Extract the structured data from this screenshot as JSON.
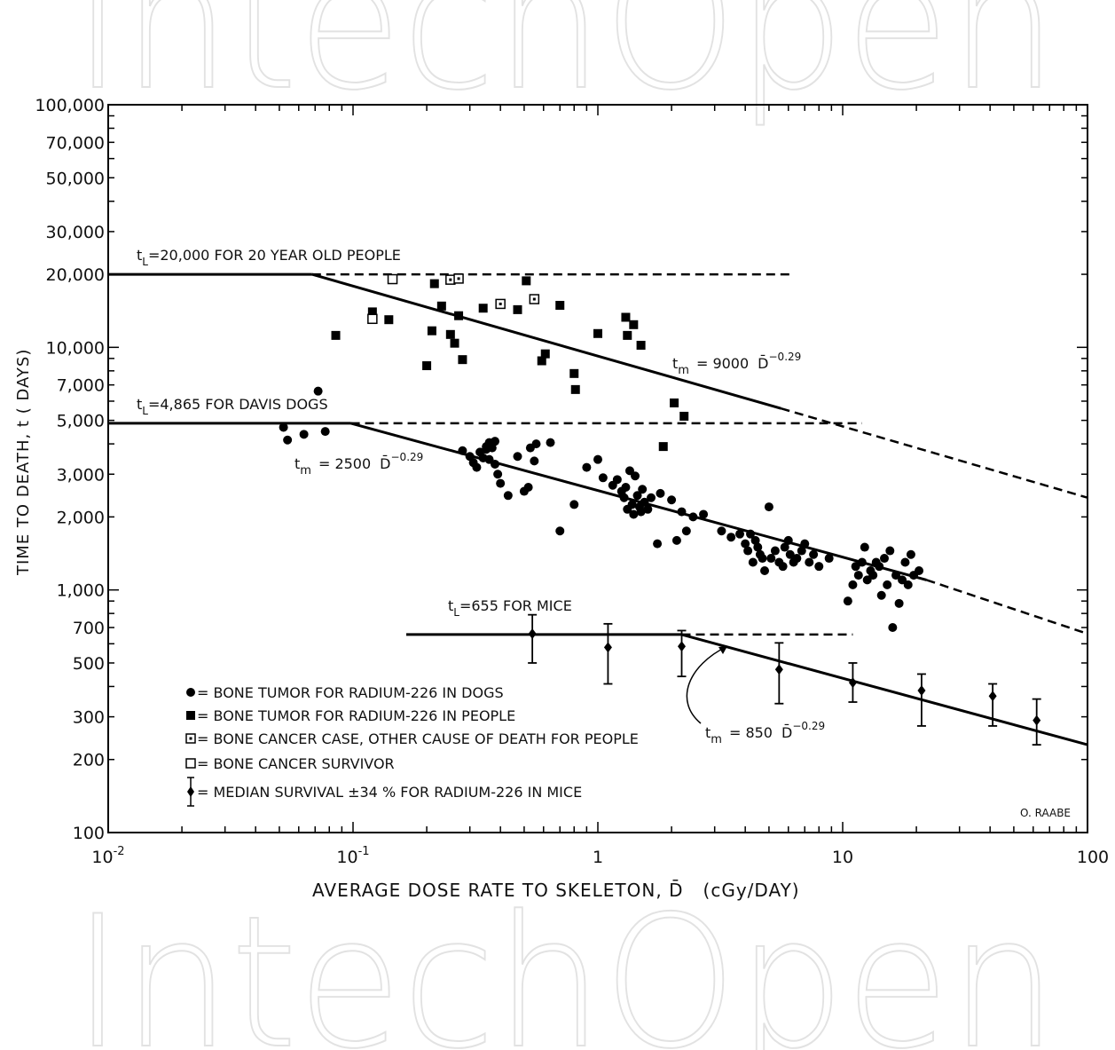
{
  "watermark": "IntechOpen",
  "chart_data": {
    "type": "scatter",
    "x_scale": "log",
    "y_scale": "log",
    "xlim": [
      0.01,
      100
    ],
    "ylim": [
      100,
      100000
    ],
    "xlabel": "AVERAGE DOSE RATE TO SKELETON, D̄   (cGy/DAY)",
    "ylabel": "TIME TO DEATH, t ( DAYS)",
    "x_ticks": [
      {
        "v": 0.01,
        "base": "10",
        "exp": "-2"
      },
      {
        "v": 0.1,
        "base": "10",
        "exp": "-1"
      },
      {
        "v": 1,
        "base": "1",
        "exp": ""
      },
      {
        "v": 10,
        "base": "10",
        "exp": ""
      },
      {
        "v": 100,
        "base": "100",
        "exp": ""
      }
    ],
    "y_ticks": [
      {
        "v": 100,
        "label": "100"
      },
      {
        "v": 200,
        "label": "200"
      },
      {
        "v": 300,
        "label": "300"
      },
      {
        "v": 500,
        "label": "500"
      },
      {
        "v": 700,
        "label": "700"
      },
      {
        "v": 1000,
        "label": "1,000"
      },
      {
        "v": 2000,
        "label": "2,000"
      },
      {
        "v": 3000,
        "label": "3,000"
      },
      {
        "v": 5000,
        "label": "5,000"
      },
      {
        "v": 7000,
        "label": "7,000"
      },
      {
        "v": 10000,
        "label": "10,000"
      },
      {
        "v": 20000,
        "label": "20,000"
      },
      {
        "v": 30000,
        "label": "30,000"
      },
      {
        "v": 50000,
        "label": "50,000"
      },
      {
        "v": 70000,
        "label": "70,000"
      },
      {
        "v": 100000,
        "label": "100,000"
      }
    ],
    "lines": [
      {
        "id": "people-life",
        "style": "solid",
        "points": [
          [
            0.01,
            20000
          ],
          [
            0.068,
            20000
          ]
        ]
      },
      {
        "id": "people-life-ext",
        "style": "dashed",
        "points": [
          [
            0.068,
            20000
          ],
          [
            6.2,
            20000
          ]
        ]
      },
      {
        "id": "people-fit",
        "style": "solid",
        "points": [
          [
            0.068,
            20000
          ],
          [
            5.6,
            5600
          ]
        ]
      },
      {
        "id": "people-fit-ext",
        "style": "dashed",
        "points": [
          [
            5.6,
            5600
          ],
          [
            100,
            2400
          ]
        ]
      },
      {
        "id": "dogs-life",
        "style": "solid",
        "points": [
          [
            0.01,
            4865
          ],
          [
            0.098,
            4865
          ]
        ]
      },
      {
        "id": "dogs-life-ext",
        "style": "dashed",
        "points": [
          [
            0.098,
            4865
          ],
          [
            12,
            4865
          ]
        ]
      },
      {
        "id": "dogs-fit",
        "style": "solid",
        "points": [
          [
            0.098,
            4865
          ],
          [
            22,
            1100
          ]
        ]
      },
      {
        "id": "dogs-fit-ext",
        "style": "dashed",
        "points": [
          [
            22,
            1100
          ],
          [
            100,
            660
          ]
        ]
      },
      {
        "id": "mice-life",
        "style": "solid",
        "points": [
          [
            0.165,
            655
          ],
          [
            2.2,
            655
          ]
        ]
      },
      {
        "id": "mice-life-ext",
        "style": "dashed",
        "points": [
          [
            2.2,
            655
          ],
          [
            11,
            655
          ]
        ]
      },
      {
        "id": "mice-fit",
        "style": "solid",
        "points": [
          [
            2.2,
            655
          ],
          [
            100,
            230
          ]
        ]
      }
    ],
    "series": [
      {
        "name": "BONE TUMOR FOR RADIUM-226 IN DOGS",
        "marker": "circle",
        "points": [
          [
            0.052,
            4680
          ],
          [
            0.054,
            4150
          ],
          [
            0.063,
            4380
          ],
          [
            0.072,
            6600
          ],
          [
            0.077,
            4500
          ],
          [
            0.28,
            3750
          ],
          [
            0.3,
            3550
          ],
          [
            0.31,
            3350
          ],
          [
            0.32,
            3200
          ],
          [
            0.33,
            3700
          ],
          [
            0.34,
            3500
          ],
          [
            0.35,
            3900
          ],
          [
            0.35,
            3800
          ],
          [
            0.36,
            4050
          ],
          [
            0.36,
            3450
          ],
          [
            0.37,
            3850
          ],
          [
            0.38,
            4100
          ],
          [
            0.38,
            3300
          ],
          [
            0.39,
            3000
          ],
          [
            0.4,
            2750
          ],
          [
            0.43,
            2450
          ],
          [
            0.47,
            3550
          ],
          [
            0.5,
            2550
          ],
          [
            0.52,
            2650
          ],
          [
            0.53,
            3850
          ],
          [
            0.55,
            3400
          ],
          [
            0.56,
            4000
          ],
          [
            0.64,
            4050
          ],
          [
            0.7,
            1750
          ],
          [
            0.8,
            2250
          ],
          [
            0.9,
            3200
          ],
          [
            1.0,
            3450
          ],
          [
            1.05,
            2900
          ],
          [
            1.15,
            2700
          ],
          [
            1.2,
            2850
          ],
          [
            1.25,
            2550
          ],
          [
            1.28,
            2400
          ],
          [
            1.3,
            2650
          ],
          [
            1.32,
            2150
          ],
          [
            1.35,
            3100
          ],
          [
            1.38,
            2250
          ],
          [
            1.4,
            2050
          ],
          [
            1.42,
            2950
          ],
          [
            1.45,
            2450
          ],
          [
            1.48,
            2200
          ],
          [
            1.5,
            2100
          ],
          [
            1.52,
            2600
          ],
          [
            1.55,
            2300
          ],
          [
            1.6,
            2150
          ],
          [
            1.65,
            2400
          ],
          [
            1.75,
            1550
          ],
          [
            1.8,
            2500
          ],
          [
            2.0,
            2350
          ],
          [
            2.1,
            1600
          ],
          [
            2.2,
            2100
          ],
          [
            2.3,
            1750
          ],
          [
            2.45,
            2000
          ],
          [
            2.7,
            2050
          ],
          [
            3.2,
            1750
          ],
          [
            3.5,
            1650
          ],
          [
            3.8,
            1700
          ],
          [
            4.0,
            1550
          ],
          [
            4.1,
            1450
          ],
          [
            4.2,
            1700
          ],
          [
            4.3,
            1300
          ],
          [
            4.4,
            1600
          ],
          [
            4.5,
            1500
          ],
          [
            4.6,
            1400
          ],
          [
            4.7,
            1350
          ],
          [
            4.8,
            1200
          ],
          [
            5.0,
            2200
          ],
          [
            5.1,
            1350
          ],
          [
            5.3,
            1450
          ],
          [
            5.5,
            1300
          ],
          [
            5.7,
            1250
          ],
          [
            5.8,
            1500
          ],
          [
            6.0,
            1600
          ],
          [
            6.1,
            1400
          ],
          [
            6.3,
            1300
          ],
          [
            6.5,
            1350
          ],
          [
            6.8,
            1450
          ],
          [
            7.0,
            1550
          ],
          [
            7.3,
            1300
          ],
          [
            7.6,
            1400
          ],
          [
            8.0,
            1250
          ],
          [
            8.8,
            1350
          ],
          [
            10.5,
            900
          ],
          [
            11.0,
            1050
          ],
          [
            11.3,
            1250
          ],
          [
            11.6,
            1150
          ],
          [
            12.0,
            1300
          ],
          [
            12.3,
            1500
          ],
          [
            12.6,
            1100
          ],
          [
            13.0,
            1200
          ],
          [
            13.3,
            1150
          ],
          [
            13.7,
            1300
          ],
          [
            14.1,
            1250
          ],
          [
            14.4,
            950
          ],
          [
            14.8,
            1350
          ],
          [
            15.2,
            1050
          ],
          [
            15.6,
            1450
          ],
          [
            16.0,
            700
          ],
          [
            16.5,
            1150
          ],
          [
            17.0,
            880
          ],
          [
            17.5,
            1100
          ],
          [
            18.0,
            1300
          ],
          [
            18.5,
            1050
          ],
          [
            19.0,
            1400
          ],
          [
            19.5,
            1150
          ],
          [
            20.5,
            1200
          ]
        ]
      },
      {
        "name": "BONE TUMOR FOR RADIUM-226 IN PEOPLE",
        "marker": "square",
        "points": [
          [
            0.085,
            11200
          ],
          [
            0.12,
            14000
          ],
          [
            0.14,
            13000
          ],
          [
            0.2,
            8400
          ],
          [
            0.21,
            11700
          ],
          [
            0.215,
            18300
          ],
          [
            0.23,
            14800
          ],
          [
            0.25,
            11300
          ],
          [
            0.26,
            10400
          ],
          [
            0.27,
            13500
          ],
          [
            0.28,
            8900
          ],
          [
            0.34,
            14500
          ],
          [
            0.47,
            14300
          ],
          [
            0.51,
            18800
          ],
          [
            0.59,
            8800
          ],
          [
            0.61,
            9400
          ],
          [
            0.7,
            14900
          ],
          [
            0.8,
            7800
          ],
          [
            0.81,
            6700
          ],
          [
            1.0,
            11400
          ],
          [
            1.3,
            13300
          ],
          [
            1.32,
            11200
          ],
          [
            1.4,
            12400
          ],
          [
            1.5,
            10200
          ],
          [
            2.05,
            5900
          ],
          [
            2.25,
            5200
          ],
          [
            1.85,
            3900
          ]
        ]
      },
      {
        "name": "BONE CANCER CASE, OTHER CAUSE OF DEATH FOR PEOPLE",
        "marker": "square-dot",
        "points": [
          [
            0.25,
            19000
          ],
          [
            0.27,
            19200
          ],
          [
            0.4,
            15100
          ],
          [
            0.55,
            15800
          ]
        ]
      },
      {
        "name": "BONE CANCER SURVIVOR",
        "marker": "square-open",
        "points": [
          [
            0.145,
            19100
          ],
          [
            0.12,
            13100
          ]
        ]
      },
      {
        "name": "MEDIAN SURVIVAL ±34 % FOR RADIUM-226 IN MICE",
        "marker": "diamond-errorbar",
        "points": [
          {
            "x": 0.54,
            "y": 660,
            "lo": 500,
            "hi": 790
          },
          {
            "x": 1.1,
            "y": 580,
            "lo": 410,
            "hi": 725
          },
          {
            "x": 2.2,
            "y": 585,
            "lo": 440,
            "hi": 680
          },
          {
            "x": 5.5,
            "y": 470,
            "lo": 340,
            "hi": 605
          },
          {
            "x": 11,
            "y": 415,
            "lo": 345,
            "hi": 500
          },
          {
            "x": 21,
            "y": 385,
            "lo": 275,
            "hi": 450
          },
          {
            "x": 41,
            "y": 365,
            "lo": 275,
            "hi": 410
          },
          {
            "x": 62,
            "y": 290,
            "lo": 230,
            "hi": 355
          }
        ]
      }
    ],
    "annotations": [
      {
        "id": "people-tl",
        "sub": "L",
        "text": "=20,000 FOR 20 YEAR OLD PEOPLE"
      },
      {
        "id": "dogs-tl",
        "sub": "L",
        "text": "=4,865 FOR DAVIS DOGS"
      },
      {
        "id": "mice-tl",
        "sub": "L",
        "text": "=655 FOR MICE"
      },
      {
        "id": "people-eq",
        "sub": "m",
        "text": "= 9000",
        "var": "D̄",
        "exp": "−0.29"
      },
      {
        "id": "dogs-eq",
        "sub": "m",
        "text": "= 2500",
        "var": "D̄",
        "exp": "−0.29"
      },
      {
        "id": "mice-eq",
        "sub": "m",
        "text": "= 850",
        "var": "D̄",
        "exp": "−0.29"
      }
    ],
    "credit": "O. RAABE"
  }
}
